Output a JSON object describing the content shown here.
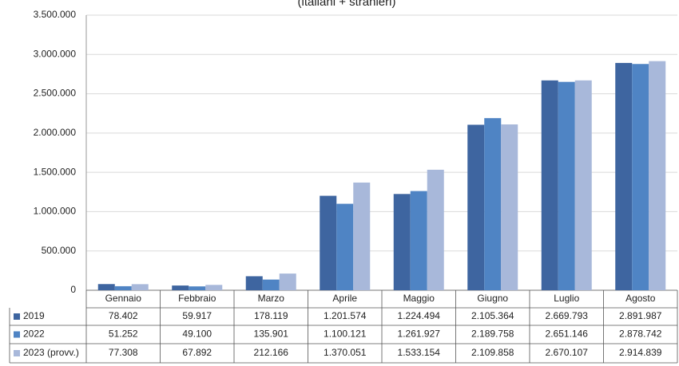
{
  "chart_data": {
    "type": "bar",
    "title": "(italiani + stranieri)",
    "categories": [
      "Gennaio",
      "Febbraio",
      "Marzo",
      "Aprile",
      "Maggio",
      "Giugno",
      "Luglio",
      "Agosto"
    ],
    "series": [
      {
        "name": "2019",
        "color": "#3e65a0",
        "values": [
          78402,
          59917,
          178119,
          1201574,
          1224494,
          2105364,
          2669793,
          2891987
        ],
        "value_labels": [
          "78.402",
          "59.917",
          "178.119",
          "1.201.574",
          "1.224.494",
          "2.105.364",
          "2.669.793",
          "2.891.987"
        ]
      },
      {
        "name": "2022",
        "color": "#4f84c4",
        "values": [
          51252,
          49100,
          135901,
          1100121,
          1261927,
          2189758,
          2651146,
          2878742
        ],
        "value_labels": [
          "51.252",
          "49.100",
          "135.901",
          "1.100.121",
          "1.261.927",
          "2.189.758",
          "2.651.146",
          "2.878.742"
        ]
      },
      {
        "name": "2023 (provv.)",
        "color": "#a8b8da",
        "values": [
          77308,
          67892,
          212166,
          1370051,
          1533154,
          2109858,
          2670107,
          2914839
        ],
        "value_labels": [
          "77.308",
          "67.892",
          "212.166",
          "1.370.051",
          "1.533.154",
          "2.109.858",
          "2.670.107",
          "2.914.839"
        ]
      }
    ],
    "ylim": [
      0,
      3500000
    ],
    "yticks": [
      0,
      {
        "value": 500000,
        "label": "500.000"
      },
      {
        "value": 1000000,
        "label": "1.000.000"
      },
      {
        "value": 1500000,
        "label": "1.500.000"
      },
      {
        "value": 2000000,
        "label": "2.000.000"
      },
      {
        "value": 2500000,
        "label": "2.500.000"
      },
      {
        "value": 3000000,
        "label": "3.000.000"
      },
      {
        "value": 3500000,
        "label": "3.500.000"
      }
    ],
    "grid": true
  }
}
